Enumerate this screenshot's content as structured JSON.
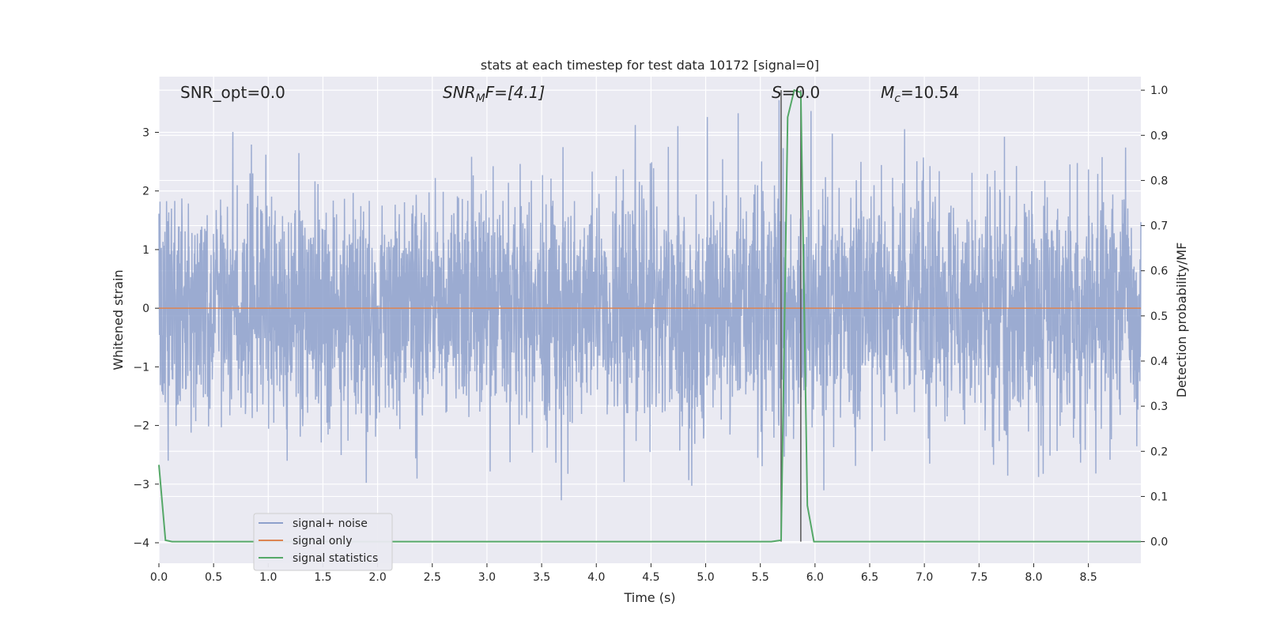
{
  "chart_data": {
    "type": "line",
    "title": "stats at each timestep for test data 10172 [signal=0]",
    "xlabel": "Time (s)",
    "ylabel": "Whitened strain",
    "ylabel_right": "Detection probability/MF",
    "xlim": [
      0.0,
      8.98
    ],
    "ylim": [
      -4.35,
      3.95
    ],
    "ylim_right": [
      -0.048,
      1.03
    ],
    "x_ticks": [
      "0.0",
      "0.5",
      "1.0",
      "1.5",
      "2.0",
      "2.5",
      "3.0",
      "3.5",
      "4.0",
      "4.5",
      "5.0",
      "5.5",
      "6.0",
      "6.5",
      "7.0",
      "7.5",
      "8.0",
      "8.5"
    ],
    "y_ticks": [
      "3",
      "2",
      "1",
      "0",
      "−1",
      "−2",
      "−3",
      "−4"
    ],
    "y_ticks_right": [
      "1.0",
      "0.9",
      "0.8",
      "0.7",
      "0.6",
      "0.5",
      "0.4",
      "0.3",
      "0.2",
      "0.1",
      "0.0"
    ],
    "grid": true,
    "legend_position": "lower-left",
    "annotations": {
      "snr_opt": "SNR_opt=0.0",
      "snr_mf_main": "SNR",
      "snr_mf_sub": "M",
      "snr_mf_rest": "F=[4.1]",
      "s_label": "S",
      "s_rest": "=0.0",
      "mc_main": "M",
      "mc_sub": "c",
      "mc_rest": "=10.54"
    },
    "vlines_x": [
      5.69,
      5.87
    ],
    "series": [
      {
        "name": "signal+ noise",
        "color": "#8da0cb",
        "description_stats": {
          "typical_range": [
            -1.8,
            1.8
          ],
          "max": 3.55,
          "min": -4.05
        }
      },
      {
        "name": "signal only",
        "color": "#dd8452",
        "x": [
          0.0,
          8.98
        ],
        "y": [
          0.0,
          0.0
        ]
      },
      {
        "name": "signal statistics",
        "color": "#55a868",
        "axis": "right",
        "x": [
          0.0,
          0.06,
          0.12,
          5.6,
          5.69,
          5.75,
          5.81,
          5.87,
          5.93,
          5.99,
          8.98
        ],
        "y": [
          0.17,
          0.003,
          0.0,
          0.0,
          0.003,
          0.94,
          1.0,
          0.995,
          0.08,
          0.0,
          0.0
        ]
      }
    ]
  },
  "colors": {
    "plot_bg": "#eaeaf2",
    "grid": "#ffffff",
    "noise": "#8da0cb",
    "signal": "#dd8452",
    "stats": "#55a868",
    "vline": "#555555"
  }
}
